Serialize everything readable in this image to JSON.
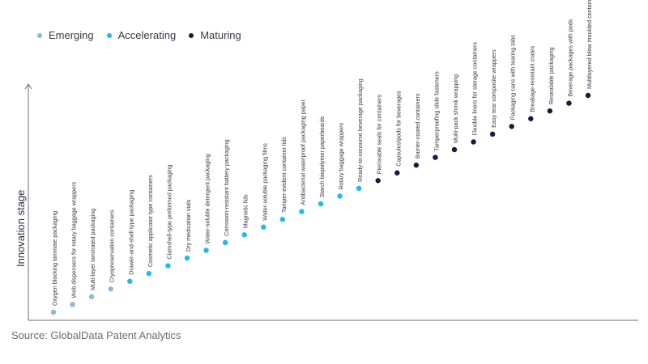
{
  "legend": [
    {
      "label": "Emerging",
      "color": "#8fb9d3"
    },
    {
      "label": "Accelerating",
      "color": "#1ebbe9"
    },
    {
      "label": "Maturing",
      "color": "#1d1641"
    }
  ],
  "source": "Source: GlobalData Patent Analytics",
  "chart_data": {
    "type": "scatter",
    "title": "",
    "xlabel": "",
    "ylabel": "Innovation stage",
    "axis_color": "#6b6b7b",
    "text_color": "#333344",
    "stages": [
      "Emerging",
      "Accelerating",
      "Maturing"
    ],
    "stage_colors": {
      "Emerging": "#8fb9d3",
      "Accelerating": "#1ebbe9",
      "Maturing": "#1d1641"
    },
    "points": [
      {
        "label": "Oxygen blocking laminate packaging",
        "stage": "Emerging",
        "y": 1
      },
      {
        "label": "Web dispensers for rotary baggage wrappers",
        "stage": "Emerging",
        "y": 2
      },
      {
        "label": "Multi-layer laminated packaging",
        "stage": "Emerging",
        "y": 3
      },
      {
        "label": "Cryopreservation containers",
        "stage": "Emerging",
        "y": 4
      },
      {
        "label": "Drawer-and-shell type packaging",
        "stage": "Accelerating",
        "y": 5
      },
      {
        "label": "Cosmetic applicator type containers",
        "stage": "Accelerating",
        "y": 6
      },
      {
        "label": "Clamshell-type preformed packaging",
        "stage": "Accelerating",
        "y": 7
      },
      {
        "label": "Dry medication vials",
        "stage": "Accelerating",
        "y": 8
      },
      {
        "label": "Water-soluble detergent packaging",
        "stage": "Accelerating",
        "y": 9
      },
      {
        "label": "Corrosion-resistant battery packaging",
        "stage": "Accelerating",
        "y": 10
      },
      {
        "label": "Magnetic lids",
        "stage": "Accelerating",
        "y": 11
      },
      {
        "label": "Water-soluble packaging films",
        "stage": "Accelerating",
        "y": 12
      },
      {
        "label": "Tamper-evident container lids",
        "stage": "Accelerating",
        "y": 13
      },
      {
        "label": "Antibacterial waterproof packaging paper",
        "stage": "Accelerating",
        "y": 14
      },
      {
        "label": "Starch biopolymer paperboards",
        "stage": "Accelerating",
        "y": 15
      },
      {
        "label": "Rotary baggage wrappers",
        "stage": "Accelerating",
        "y": 16
      },
      {
        "label": "Ready-to-consume beverage packaging",
        "stage": "Accelerating",
        "y": 17
      },
      {
        "label": "Pierceable seals for containers",
        "stage": "Maturing",
        "y": 18
      },
      {
        "label": "Capsules/pods for beverages",
        "stage": "Maturing",
        "y": 19
      },
      {
        "label": "Barrier-coated containers",
        "stage": "Maturing",
        "y": 20
      },
      {
        "label": "Tamperproofing slide fasteners",
        "stage": "Maturing",
        "y": 21
      },
      {
        "label": "Multi-pack shrink wrapping",
        "stage": "Maturing",
        "y": 22
      },
      {
        "label": "Flexible liners for storage containers",
        "stage": "Maturing",
        "y": 23
      },
      {
        "label": "Easy tear composite wrappers",
        "stage": "Maturing",
        "y": 24
      },
      {
        "label": "Packaging cans with tearing tabs",
        "stage": "Maturing",
        "y": 25
      },
      {
        "label": "Breakage-resistant crates",
        "stage": "Maturing",
        "y": 26
      },
      {
        "label": "Resealable packaging",
        "stage": "Maturing",
        "y": 27
      },
      {
        "label": "Beverage packages with pods",
        "stage": "Maturing",
        "y": 28
      },
      {
        "label": "Multilayered blow moulded container",
        "stage": "Maturing",
        "y": 29
      }
    ],
    "ylim": [
      0,
      30
    ],
    "grid": false,
    "legend_position": "top-left"
  }
}
